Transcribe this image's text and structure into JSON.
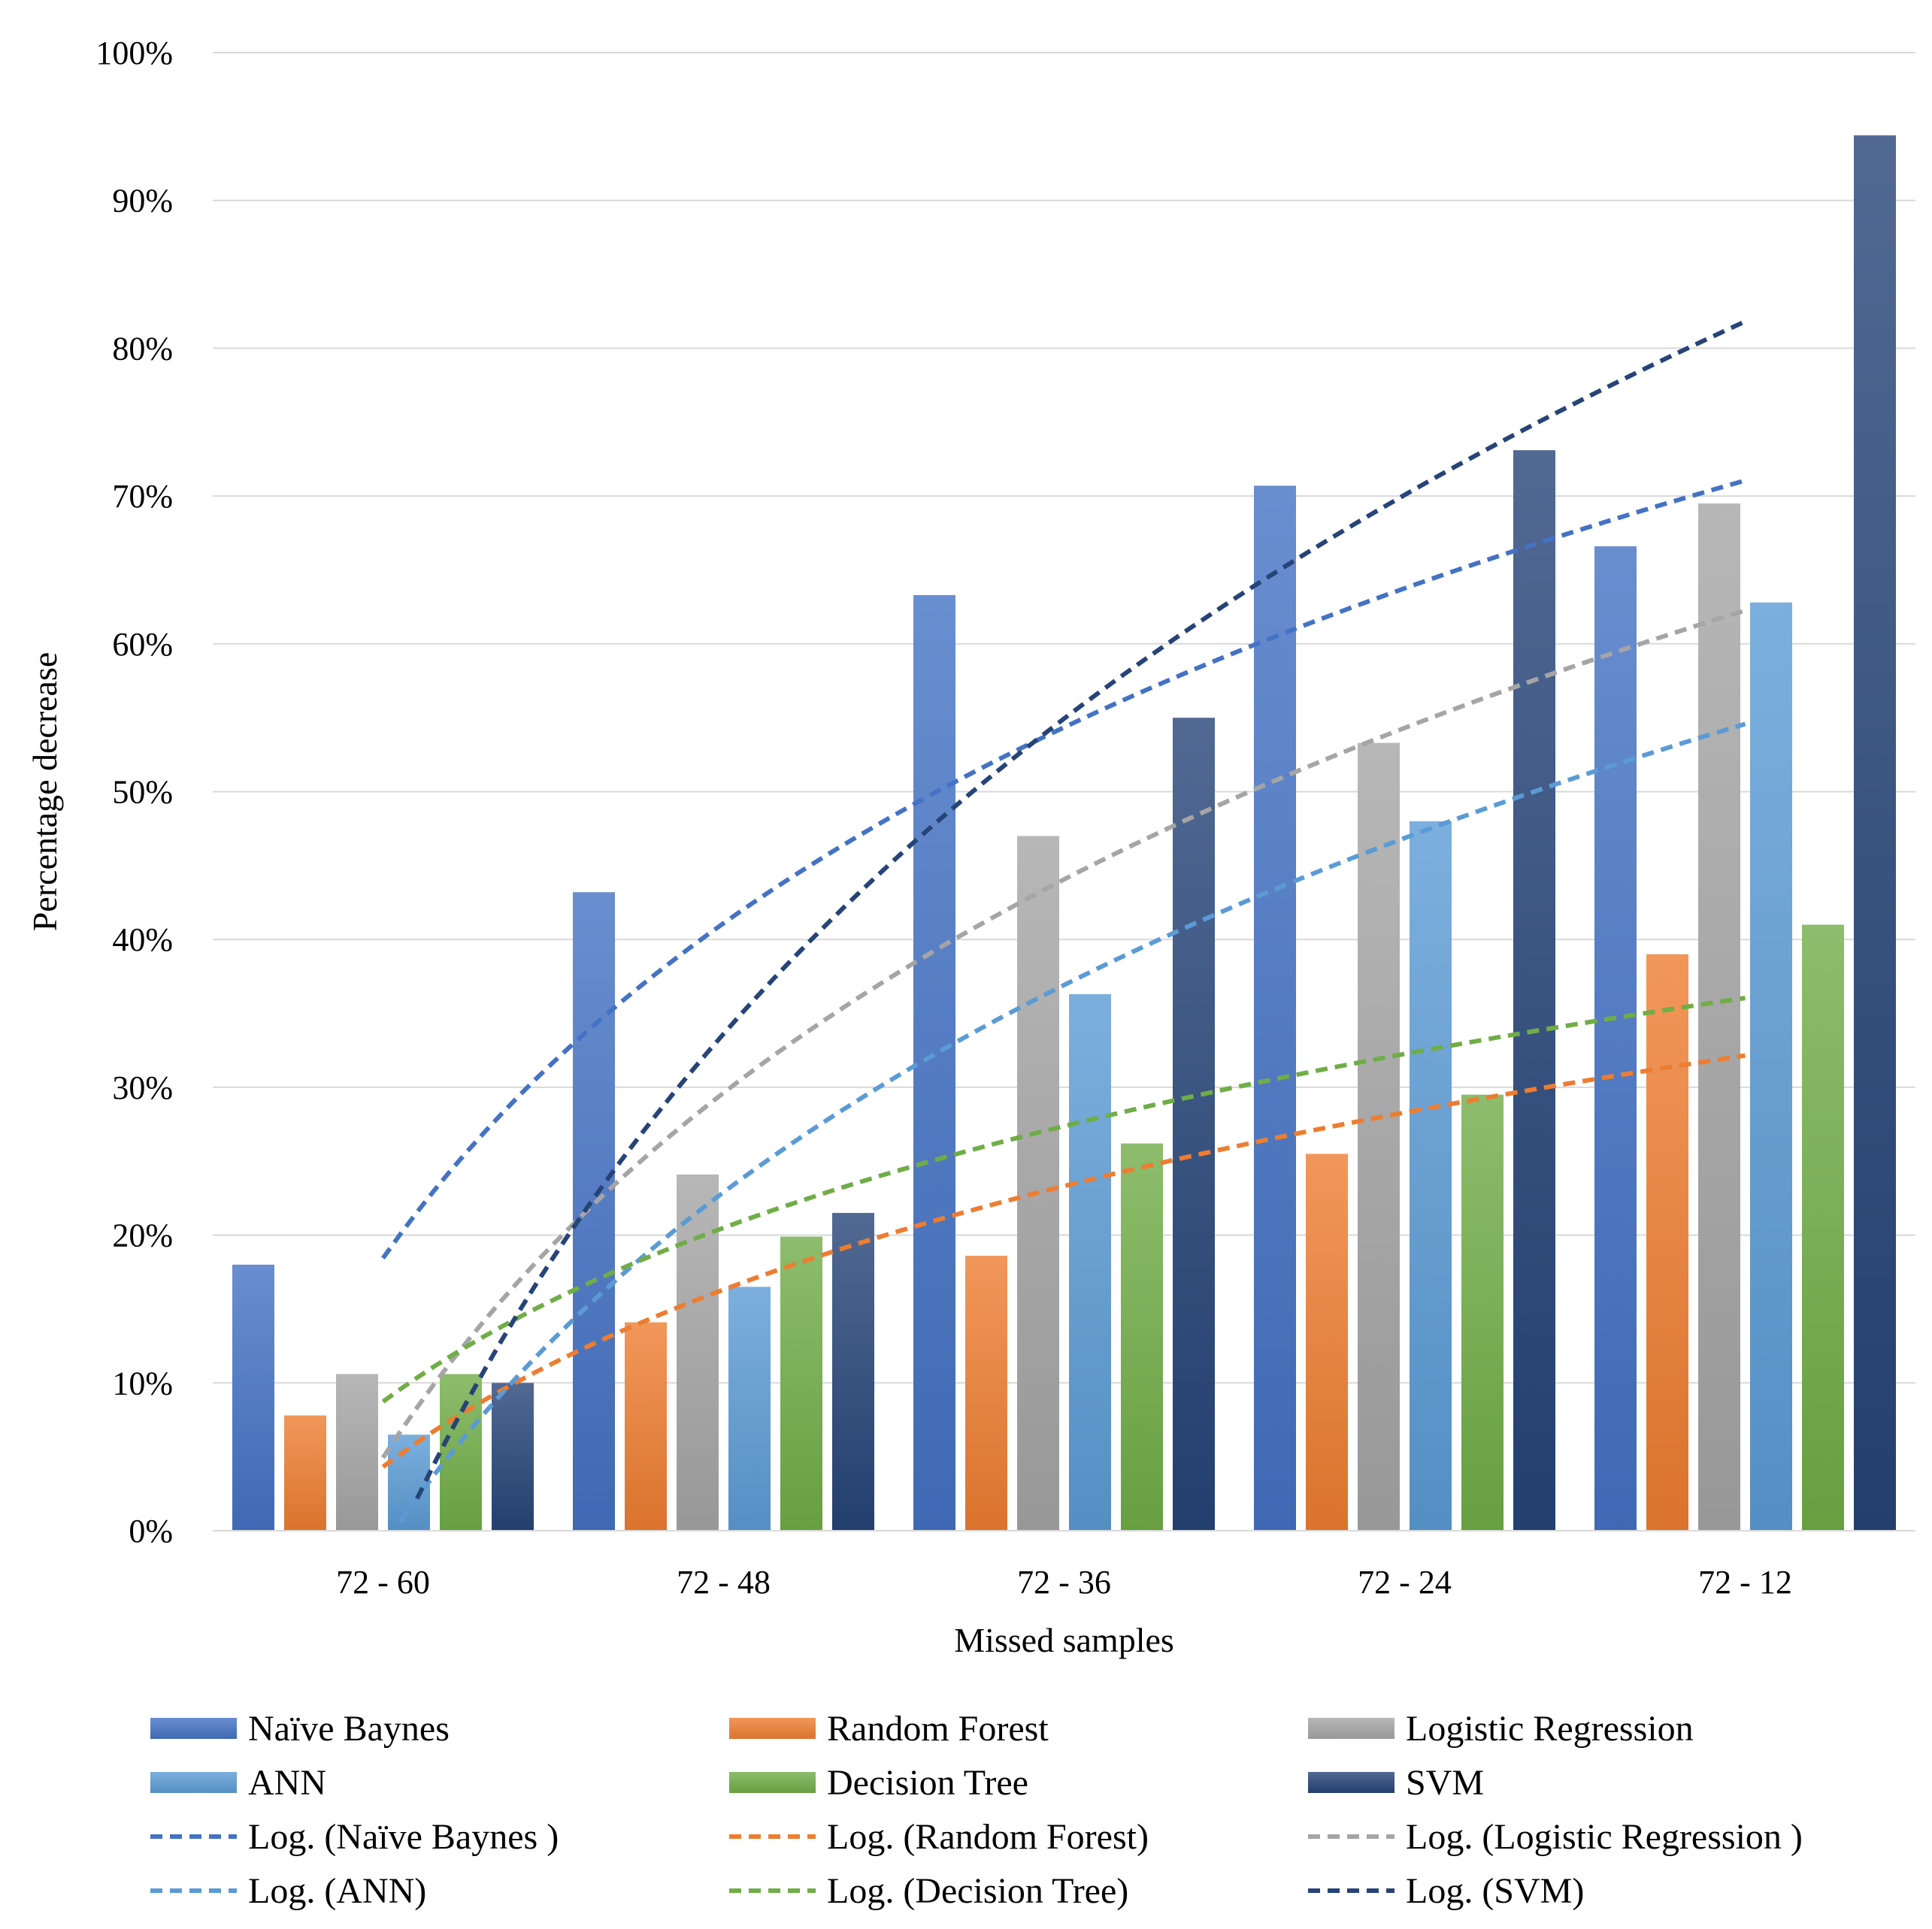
{
  "chart_data": {
    "type": "bar",
    "title": "",
    "xlabel": "Missed samples",
    "ylabel": "Percentage decrease",
    "ylim": [
      0,
      100
    ],
    "yticks": [
      "0%",
      "10%",
      "20%",
      "30%",
      "40%",
      "50%",
      "60%",
      "70%",
      "80%",
      "90%",
      "100%"
    ],
    "grid": true,
    "legend_position": "bottom",
    "categories": [
      "72 - 60",
      "72 - 48",
      "72 - 36",
      "72 - 24",
      "72 - 12"
    ],
    "series": [
      {
        "name": "Naïve Baynes",
        "color": "#4472C4",
        "values": [
          18.0,
          43.2,
          63.3,
          70.7,
          66.6
        ]
      },
      {
        "name": "Random Forest",
        "color": "#ED7D31",
        "values": [
          7.8,
          14.1,
          18.6,
          25.5,
          39.0
        ]
      },
      {
        "name": "Logistic Regression",
        "color": "#A5A5A5",
        "values": [
          10.6,
          24.1,
          47.0,
          53.3,
          69.5
        ]
      },
      {
        "name": "ANN",
        "color": "#5B9BD5",
        "values": [
          6.5,
          16.5,
          36.3,
          48.0,
          62.8
        ]
      },
      {
        "name": "Decision Tree",
        "color": "#70AD47",
        "values": [
          10.6,
          19.9,
          26.2,
          29.5,
          41.0
        ]
      },
      {
        "name": "SVM",
        "color": "#264478",
        "values": [
          10.0,
          21.5,
          55.0,
          73.1,
          94.4
        ]
      }
    ],
    "trendlines": [
      {
        "name": "Log. (Naïve Baynes )",
        "color": "#4472C4",
        "type": "log",
        "values": [
          20.3,
          39.1,
          52.5,
          62.8,
          74.0
        ]
      },
      {
        "name": "Log. (Random Forest)",
        "color": "#ED7D31",
        "type": "log",
        "values": [
          4.5,
          15.9,
          23.6,
          28.1,
          32.3
        ]
      },
      {
        "name": "Log. (Logistic Regression )",
        "color": "#A5A5A5",
        "type": "log",
        "values": [
          6.2,
          28.3,
          42.7,
          53.8,
          64.2
        ]
      },
      {
        "name": "Log. (ANN)",
        "color": "#5B9BD5",
        "type": "log",
        "values": [
          0.5,
          20.6,
          36.5,
          46.0,
          56.6
        ]
      },
      {
        "name": "Log. (Decision Tree)",
        "color": "#70AD47",
        "type": "log",
        "values": [
          9.0,
          20.3,
          27.0,
          32.0,
          36.6
        ]
      },
      {
        "name": "Log. (SVM)",
        "color": "#264478",
        "type": "log",
        "values": [
          0.0,
          30.0,
          52.5,
          70.0,
          85.1
        ]
      }
    ]
  }
}
